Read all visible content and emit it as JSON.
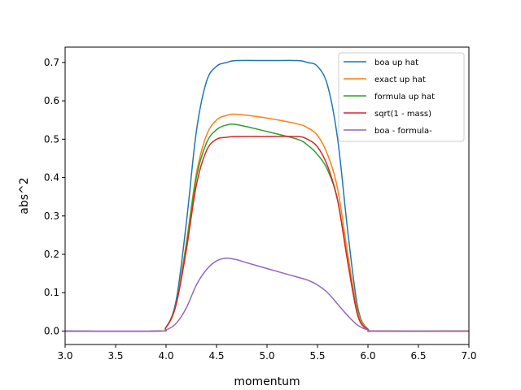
{
  "chart_data": {
    "type": "line",
    "xlabel": "momentum",
    "ylabel": "abs^2",
    "xlim": [
      3.0,
      7.0
    ],
    "ylim": [
      -0.035,
      0.74
    ],
    "grid": false,
    "legend_position": "top-right",
    "x_ticks": [
      "3.0",
      "3.5",
      "4.0",
      "4.5",
      "5.0",
      "5.5",
      "6.0",
      "6.5",
      "7.0"
    ],
    "y_ticks": [
      "0.0",
      "0.1",
      "0.2",
      "0.3",
      "0.4",
      "0.5",
      "0.6",
      "0.7"
    ],
    "series": [
      {
        "name": "boa up hat",
        "color": "#1f77b4",
        "points": [
          [
            3.0,
            0
          ],
          [
            3.9,
            0
          ],
          [
            4.0,
            0.01
          ],
          [
            4.1,
            0.08
          ],
          [
            4.2,
            0.28
          ],
          [
            4.3,
            0.52
          ],
          [
            4.4,
            0.65
          ],
          [
            4.5,
            0.69
          ],
          [
            4.6,
            0.7
          ],
          [
            4.7,
            0.705
          ],
          [
            5.0,
            0.705
          ],
          [
            5.3,
            0.705
          ],
          [
            5.4,
            0.7
          ],
          [
            5.5,
            0.69
          ],
          [
            5.6,
            0.64
          ],
          [
            5.7,
            0.5
          ],
          [
            5.8,
            0.26
          ],
          [
            5.9,
            0.06
          ],
          [
            6.0,
            0.005
          ],
          [
            6.1,
            0
          ],
          [
            7.0,
            0
          ]
        ]
      },
      {
        "name": "exact up hat",
        "color": "#ff7f0e",
        "points": [
          [
            3.0,
            0
          ],
          [
            3.9,
            0
          ],
          [
            4.0,
            0.01
          ],
          [
            4.1,
            0.07
          ],
          [
            4.2,
            0.23
          ],
          [
            4.3,
            0.41
          ],
          [
            4.4,
            0.51
          ],
          [
            4.5,
            0.55
          ],
          [
            4.6,
            0.562
          ],
          [
            4.7,
            0.565
          ],
          [
            5.0,
            0.555
          ],
          [
            5.3,
            0.54
          ],
          [
            5.4,
            0.53
          ],
          [
            5.5,
            0.51
          ],
          [
            5.6,
            0.46
          ],
          [
            5.7,
            0.37
          ],
          [
            5.8,
            0.2
          ],
          [
            5.9,
            0.05
          ],
          [
            6.0,
            0.005
          ],
          [
            6.1,
            0
          ],
          [
            7.0,
            0
          ]
        ]
      },
      {
        "name": "formula up hat",
        "color": "#2ca02c",
        "points": [
          [
            3.0,
            0
          ],
          [
            3.9,
            0
          ],
          [
            4.0,
            0.01
          ],
          [
            4.1,
            0.07
          ],
          [
            4.2,
            0.22
          ],
          [
            4.3,
            0.4
          ],
          [
            4.4,
            0.49
          ],
          [
            4.5,
            0.525
          ],
          [
            4.6,
            0.537
          ],
          [
            4.7,
            0.538
          ],
          [
            5.0,
            0.52
          ],
          [
            5.3,
            0.5
          ],
          [
            5.4,
            0.485
          ],
          [
            5.5,
            0.46
          ],
          [
            5.6,
            0.42
          ],
          [
            5.7,
            0.34
          ],
          [
            5.8,
            0.18
          ],
          [
            5.9,
            0.04
          ],
          [
            6.0,
            0.004
          ],
          [
            6.1,
            0
          ],
          [
            7.0,
            0
          ]
        ]
      },
      {
        "name": "sqrt(1 - mass)",
        "color": "#d62728",
        "points": [
          [
            3.0,
            0
          ],
          [
            3.9,
            0
          ],
          [
            4.0,
            0.01
          ],
          [
            4.1,
            0.07
          ],
          [
            4.2,
            0.21
          ],
          [
            4.3,
            0.38
          ],
          [
            4.4,
            0.47
          ],
          [
            4.5,
            0.5
          ],
          [
            4.6,
            0.505
          ],
          [
            4.7,
            0.507
          ],
          [
            5.0,
            0.507
          ],
          [
            5.3,
            0.507
          ],
          [
            5.4,
            0.5
          ],
          [
            5.5,
            0.48
          ],
          [
            5.6,
            0.43
          ],
          [
            5.7,
            0.34
          ],
          [
            5.8,
            0.18
          ],
          [
            5.9,
            0.04
          ],
          [
            6.0,
            0.004
          ],
          [
            6.1,
            0
          ],
          [
            7.0,
            0
          ]
        ]
      },
      {
        "name": "boa - formula-",
        "color": "#9467bd",
        "points": [
          [
            3.0,
            0
          ],
          [
            3.9,
            0
          ],
          [
            4.0,
            0.003
          ],
          [
            4.1,
            0.02
          ],
          [
            4.2,
            0.06
          ],
          [
            4.3,
            0.12
          ],
          [
            4.4,
            0.16
          ],
          [
            4.5,
            0.183
          ],
          [
            4.6,
            0.19
          ],
          [
            4.7,
            0.186
          ],
          [
            4.8,
            0.178
          ],
          [
            5.0,
            0.163
          ],
          [
            5.2,
            0.148
          ],
          [
            5.4,
            0.133
          ],
          [
            5.5,
            0.12
          ],
          [
            5.6,
            0.1
          ],
          [
            5.7,
            0.07
          ],
          [
            5.8,
            0.04
          ],
          [
            5.9,
            0.015
          ],
          [
            6.0,
            0.003
          ],
          [
            6.1,
            0
          ],
          [
            7.0,
            0
          ]
        ]
      }
    ]
  }
}
